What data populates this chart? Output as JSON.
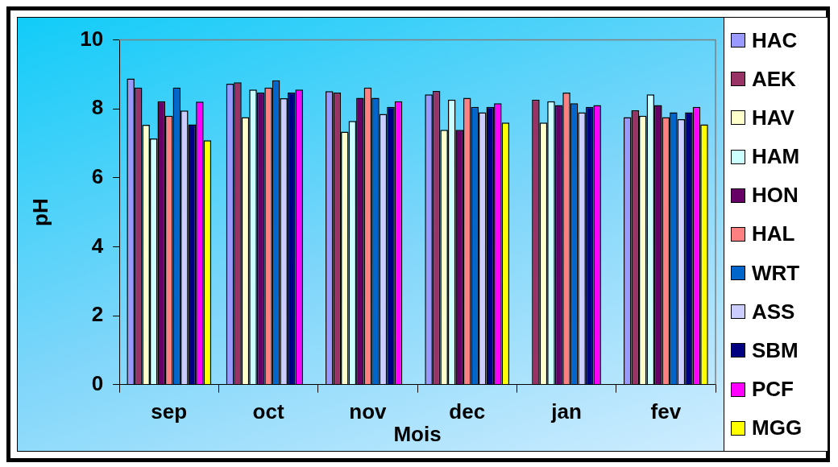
{
  "chart_data": {
    "type": "bar",
    "xlabel": "Mois",
    "ylabel": "pH",
    "categories": [
      "sep",
      "oct",
      "nov",
      "dec",
      "jan",
      "fev"
    ],
    "ylim": [
      0,
      10
    ],
    "yticks": [
      0,
      2,
      4,
      6,
      8,
      10
    ],
    "grid": false,
    "legend": "right",
    "series": [
      {
        "name": "HAC",
        "color": "#9999ff",
        "values": [
          8.88,
          8.73,
          8.51,
          8.42,
          null,
          7.76
        ]
      },
      {
        "name": "AEK",
        "color": "#993366",
        "values": [
          8.62,
          8.77,
          8.47,
          8.52,
          8.27,
          7.96
        ]
      },
      {
        "name": "HAV",
        "color": "#ffffcc",
        "values": [
          7.54,
          7.76,
          7.34,
          7.39,
          7.6,
          7.8
        ]
      },
      {
        "name": "HAM",
        "color": "#ccffff",
        "values": [
          7.14,
          8.56,
          7.65,
          8.27,
          8.22,
          8.42
        ]
      },
      {
        "name": "HON",
        "color": "#660066",
        "values": [
          8.22,
          8.47,
          8.32,
          7.39,
          8.11,
          8.11
        ]
      },
      {
        "name": "HAL",
        "color": "#ff8080",
        "values": [
          7.8,
          8.62,
          8.62,
          8.32,
          8.47,
          7.76
        ]
      },
      {
        "name": "WRT",
        "color": "#0066cc",
        "values": [
          8.62,
          8.83,
          8.32,
          8.06,
          8.16,
          7.9
        ]
      },
      {
        "name": "ASS",
        "color": "#ccccff",
        "values": [
          7.95,
          8.31,
          7.85,
          7.9,
          7.9,
          7.7
        ]
      },
      {
        "name": "SBM",
        "color": "#000080",
        "values": [
          7.55,
          8.47,
          8.06,
          8.06,
          8.06,
          7.9
        ]
      },
      {
        "name": "PCF",
        "color": "#ff00ff",
        "values": [
          8.21,
          8.56,
          8.22,
          8.16,
          8.11,
          8.06
        ]
      },
      {
        "name": "MGG",
        "color": "#ffff00",
        "values": [
          7.09,
          null,
          null,
          7.6,
          null,
          7.55
        ]
      }
    ]
  }
}
